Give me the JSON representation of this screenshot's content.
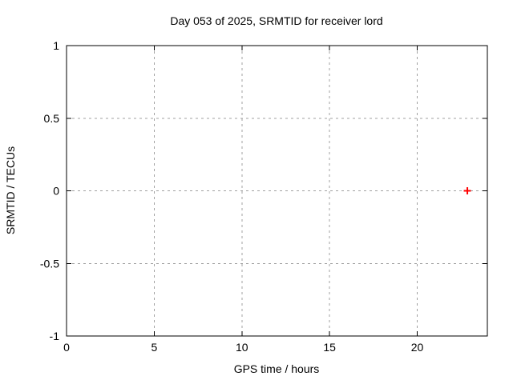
{
  "chart_data": {
    "type": "scatter",
    "title": "Day 053 of 2025, SRMTID for receiver lord",
    "xlabel": "GPS time / hours",
    "ylabel": "SRMTID / TECUs",
    "xlim": [
      0,
      24
    ],
    "ylim": [
      -1,
      1
    ],
    "xticks": [
      {
        "value": 0,
        "label": "0"
      },
      {
        "value": 5,
        "label": "5"
      },
      {
        "value": 10,
        "label": "10"
      },
      {
        "value": 15,
        "label": "15"
      },
      {
        "value": 20,
        "label": "20"
      }
    ],
    "yticks": [
      {
        "value": -1,
        "label": "-1"
      },
      {
        "value": -0.5,
        "label": "-0.5"
      },
      {
        "value": 0,
        "label": "0"
      },
      {
        "value": 0.5,
        "label": "0.5"
      },
      {
        "value": 1,
        "label": "1"
      }
    ],
    "grid": true,
    "legend_position": "none",
    "series": [
      {
        "name": "SRMTID",
        "marker": "plus",
        "color": "#ff0000",
        "points": [
          {
            "x": 22.86,
            "y": 0.0
          }
        ]
      }
    ],
    "colors": {
      "background": "#ffffff",
      "axis": "#000000",
      "grid": "#a0a0a0",
      "text": "#000000"
    }
  }
}
